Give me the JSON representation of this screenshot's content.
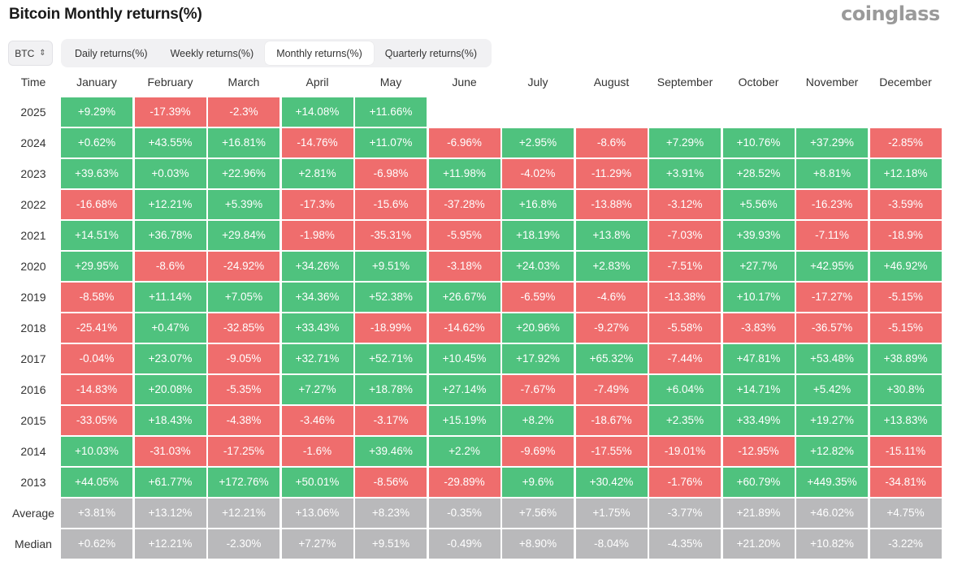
{
  "header": {
    "title": "Bitcoin Monthly returns(%)",
    "brand": "coinglass"
  },
  "coin_select": {
    "value": "BTC"
  },
  "tabs": [
    {
      "label": "Daily returns(%)",
      "active": false
    },
    {
      "label": "Weekly returns(%)",
      "active": false
    },
    {
      "label": "Monthly returns(%)",
      "active": true
    },
    {
      "label": "Quarterly returns(%)",
      "active": false
    }
  ],
  "colors": {
    "positive": "#4fc27e",
    "negative": "#ef6d6d",
    "summary": "#b9b9bb"
  },
  "table": {
    "time_header": "Time",
    "months": [
      "January",
      "February",
      "March",
      "April",
      "May",
      "June",
      "July",
      "August",
      "September",
      "October",
      "November",
      "December"
    ],
    "rows": [
      {
        "label": "2025",
        "values": [
          "+9.29%",
          "-17.39%",
          "-2.3%",
          "+14.08%",
          "+11.66%",
          "",
          "",
          "",
          "",
          "",
          "",
          ""
        ]
      },
      {
        "label": "2024",
        "values": [
          "+0.62%",
          "+43.55%",
          "+16.81%",
          "-14.76%",
          "+11.07%",
          "-6.96%",
          "+2.95%",
          "-8.6%",
          "+7.29%",
          "+10.76%",
          "+37.29%",
          "-2.85%"
        ]
      },
      {
        "label": "2023",
        "values": [
          "+39.63%",
          "+0.03%",
          "+22.96%",
          "+2.81%",
          "-6.98%",
          "+11.98%",
          "-4.02%",
          "-11.29%",
          "+3.91%",
          "+28.52%",
          "+8.81%",
          "+12.18%"
        ]
      },
      {
        "label": "2022",
        "values": [
          "-16.68%",
          "+12.21%",
          "+5.39%",
          "-17.3%",
          "-15.6%",
          "-37.28%",
          "+16.8%",
          "-13.88%",
          "-3.12%",
          "+5.56%",
          "-16.23%",
          "-3.59%"
        ]
      },
      {
        "label": "2021",
        "values": [
          "+14.51%",
          "+36.78%",
          "+29.84%",
          "-1.98%",
          "-35.31%",
          "-5.95%",
          "+18.19%",
          "+13.8%",
          "-7.03%",
          "+39.93%",
          "-7.11%",
          "-18.9%"
        ]
      },
      {
        "label": "2020",
        "values": [
          "+29.95%",
          "-8.6%",
          "-24.92%",
          "+34.26%",
          "+9.51%",
          "-3.18%",
          "+24.03%",
          "+2.83%",
          "-7.51%",
          "+27.7%",
          "+42.95%",
          "+46.92%"
        ]
      },
      {
        "label": "2019",
        "values": [
          "-8.58%",
          "+11.14%",
          "+7.05%",
          "+34.36%",
          "+52.38%",
          "+26.67%",
          "-6.59%",
          "-4.6%",
          "-13.38%",
          "+10.17%",
          "-17.27%",
          "-5.15%"
        ]
      },
      {
        "label": "2018",
        "values": [
          "-25.41%",
          "+0.47%",
          "-32.85%",
          "+33.43%",
          "-18.99%",
          "-14.62%",
          "+20.96%",
          "-9.27%",
          "-5.58%",
          "-3.83%",
          "-36.57%",
          "-5.15%"
        ]
      },
      {
        "label": "2017",
        "values": [
          "-0.04%",
          "+23.07%",
          "-9.05%",
          "+32.71%",
          "+52.71%",
          "+10.45%",
          "+17.92%",
          "+65.32%",
          "-7.44%",
          "+47.81%",
          "+53.48%",
          "+38.89%"
        ]
      },
      {
        "label": "2016",
        "values": [
          "-14.83%",
          "+20.08%",
          "-5.35%",
          "+7.27%",
          "+18.78%",
          "+27.14%",
          "-7.67%",
          "-7.49%",
          "+6.04%",
          "+14.71%",
          "+5.42%",
          "+30.8%"
        ]
      },
      {
        "label": "2015",
        "values": [
          "-33.05%",
          "+18.43%",
          "-4.38%",
          "-3.46%",
          "-3.17%",
          "+15.19%",
          "+8.2%",
          "-18.67%",
          "+2.35%",
          "+33.49%",
          "+19.27%",
          "+13.83%"
        ]
      },
      {
        "label": "2014",
        "values": [
          "+10.03%",
          "-31.03%",
          "-17.25%",
          "-1.6%",
          "+39.46%",
          "+2.2%",
          "-9.69%",
          "-17.55%",
          "-19.01%",
          "-12.95%",
          "+12.82%",
          "-15.11%"
        ]
      },
      {
        "label": "2013",
        "values": [
          "+44.05%",
          "+61.77%",
          "+172.76%",
          "+50.01%",
          "-8.56%",
          "-29.89%",
          "+9.6%",
          "+30.42%",
          "-1.76%",
          "+60.79%",
          "+449.35%",
          "-34.81%"
        ]
      },
      {
        "label": "Average",
        "summary": true,
        "values": [
          "+3.81%",
          "+13.12%",
          "+12.21%",
          "+13.06%",
          "+8.23%",
          "-0.35%",
          "+7.56%",
          "+1.75%",
          "-3.77%",
          "+21.89%",
          "+46.02%",
          "+4.75%"
        ]
      },
      {
        "label": "Median",
        "summary": true,
        "values": [
          "+0.62%",
          "+12.21%",
          "-2.30%",
          "+7.27%",
          "+9.51%",
          "-0.49%",
          "+8.90%",
          "-8.04%",
          "-4.35%",
          "+21.20%",
          "+10.82%",
          "-3.22%"
        ]
      }
    ]
  }
}
